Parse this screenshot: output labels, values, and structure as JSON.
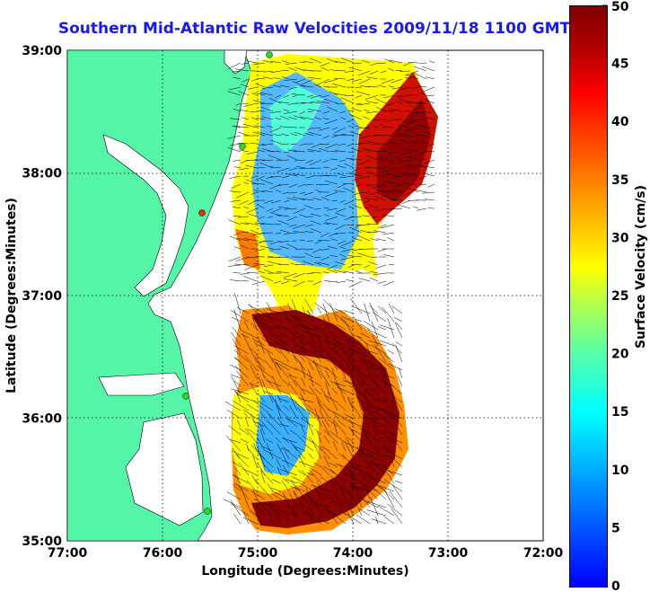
{
  "title": "Southern Mid-Atlantic Raw Velocities 2009/11/18 1100 GMT",
  "x_axis": {
    "label": "Longitude (Degrees:Minutes)",
    "ticks": [
      "77:00",
      "76:00",
      "75:00",
      "74:00",
      "73:00",
      "72:00"
    ]
  },
  "y_axis": {
    "label": "Latitude (Degrees:Minutes)",
    "ticks": [
      "39:00",
      "38:00",
      "37:00",
      "36:00",
      "35:00"
    ]
  },
  "colorbar": {
    "label": "Surface Velocity (cm/s)",
    "ticks": [
      "50",
      "45",
      "40",
      "35",
      "30",
      "25",
      "20",
      "15",
      "10",
      "5",
      "0"
    ],
    "min": 0,
    "max": 50
  },
  "colors": {
    "land": "#55f5a8",
    "title": "#1818ff",
    "station": "#22dd22"
  }
}
